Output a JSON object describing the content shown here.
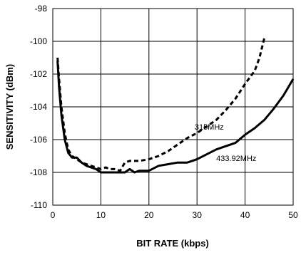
{
  "chart_data": {
    "type": "line",
    "title": "",
    "xlabel": "BIT RATE (kbps)",
    "ylabel": "SENSITIVITY (dBm)",
    "xlim": [
      0,
      50
    ],
    "ylim": [
      -110,
      -98
    ],
    "xticks": [
      0,
      10,
      20,
      30,
      40,
      50
    ],
    "yticks": [
      -98,
      -100,
      -102,
      -104,
      -106,
      -108,
      -110
    ],
    "grid": true,
    "legend": "none",
    "series": [
      {
        "name": "315MHz",
        "style": "dashed",
        "color": "#000000",
        "x": [
          1,
          1.3,
          1.8,
          2.5,
          3.2,
          4,
          5,
          6,
          7,
          8,
          9,
          10,
          11,
          12,
          13,
          14,
          15,
          16,
          18,
          20,
          22,
          24,
          26,
          28,
          30,
          32,
          34,
          36,
          38,
          40,
          42,
          43,
          44
        ],
        "y": [
          -101.0,
          -102.3,
          -104.0,
          -105.6,
          -106.6,
          -107.0,
          -107.2,
          -107.4,
          -107.5,
          -107.6,
          -107.7,
          -107.8,
          -107.7,
          -107.8,
          -107.8,
          -107.9,
          -107.4,
          -107.3,
          -107.3,
          -107.2,
          -107.0,
          -106.7,
          -106.3,
          -105.9,
          -105.6,
          -105.2,
          -104.8,
          -104.2,
          -103.5,
          -102.6,
          -101.8,
          -101.0,
          -99.8
        ]
      },
      {
        "name": "433.92MHz",
        "style": "solid",
        "color": "#000000",
        "x": [
          1,
          1.3,
          1.8,
          2.5,
          3.2,
          4,
          5,
          6,
          7,
          8,
          9,
          10,
          11,
          12,
          13,
          14,
          15,
          16,
          17,
          18,
          19,
          20,
          22,
          24,
          26,
          28,
          30,
          32,
          34,
          36,
          38,
          40,
          42,
          44,
          46,
          48,
          50
        ],
        "y": [
          -101.2,
          -102.8,
          -104.5,
          -106.0,
          -106.8,
          -107.1,
          -107.1,
          -107.4,
          -107.6,
          -107.7,
          -107.8,
          -108.0,
          -108.0,
          -108.0,
          -108.0,
          -108.0,
          -108.0,
          -107.8,
          -108.0,
          -107.9,
          -107.9,
          -107.9,
          -107.6,
          -107.5,
          -107.4,
          -107.4,
          -107.2,
          -106.9,
          -106.6,
          -106.4,
          -106.2,
          -105.7,
          -105.3,
          -104.8,
          -104.1,
          -103.3,
          -102.3
        ]
      }
    ],
    "annotations": [
      {
        "text": "315MHz",
        "x": 29.5,
        "y": -105.4
      },
      {
        "text": "433.92MHz",
        "x": 34,
        "y": -107.3
      }
    ]
  }
}
